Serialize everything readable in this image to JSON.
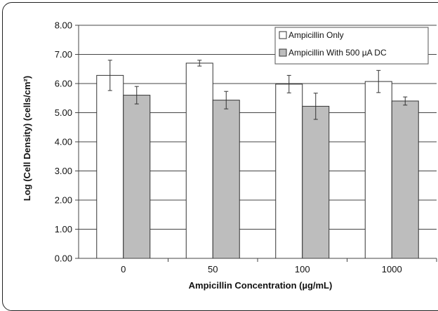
{
  "chart_data": {
    "type": "bar",
    "title": "",
    "xlabel": "Ampicillin Concentration (µg/mL)",
    "ylabel": "Log (Cell Density) (cells/cm²)",
    "ylim": [
      0,
      8
    ],
    "y_ticks": [
      "0.00",
      "1.00",
      "2.00",
      "3.00",
      "4.00",
      "5.00",
      "6.00",
      "7.00",
      "8.00"
    ],
    "categories": [
      "0",
      "50",
      "100",
      "1000"
    ],
    "grid": true,
    "legend_position": "top-right",
    "series": [
      {
        "name": "Ampicillin Only",
        "color": "#ffffff",
        "values": [
          6.28,
          6.7,
          5.98,
          6.07
        ],
        "errors": [
          0.52,
          0.1,
          0.3,
          0.38
        ]
      },
      {
        "name": "Ampicillin With 500 µA DC",
        "color": "#bdbdbd",
        "values": [
          5.6,
          5.43,
          5.22,
          5.4
        ],
        "errors": [
          0.3,
          0.3,
          0.45,
          0.14
        ]
      }
    ]
  }
}
